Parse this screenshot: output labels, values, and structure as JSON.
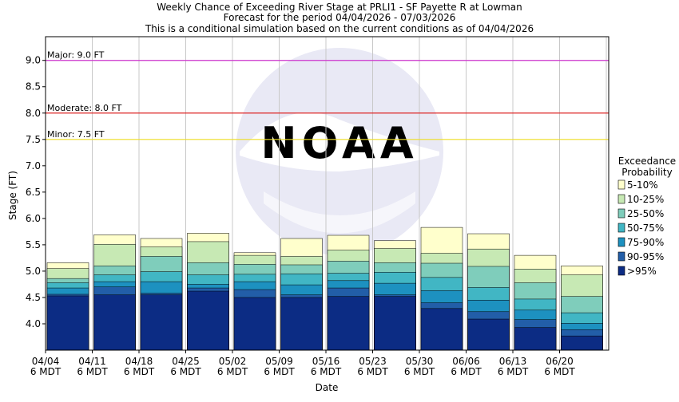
{
  "chart_data": {
    "type": "bar",
    "stacked": true,
    "title": [
      "Weekly Chance of Exceeding River Stage at PRLI1 - SF Payette R at Lowman",
      "Forecast for the period 04/04/2026 - 07/03/2026",
      "This is a conditional simulation based on the current conditions as of 04/04/2026"
    ],
    "xlabel": "Date",
    "ylabel": "Stage (FT)",
    "ylim": [
      3.5,
      9.45
    ],
    "yticks": [
      4.0,
      4.5,
      5.0,
      5.5,
      6.0,
      6.5,
      7.0,
      7.5,
      8.0,
      8.5,
      9.0
    ],
    "ytick_labels": [
      "4.0",
      "4.5",
      "5.0",
      "5.5",
      "6.0",
      "6.5",
      "7.0",
      "7.5",
      "8.0",
      "8.5",
      "9.0"
    ],
    "xtick_labels": [
      {
        "date": "04/04",
        "time": "6 MDT"
      },
      {
        "date": "04/11",
        "time": "6 MDT"
      },
      {
        "date": "04/18",
        "time": "6 MDT"
      },
      {
        "date": "04/25",
        "time": "6 MDT"
      },
      {
        "date": "05/02",
        "time": "6 MDT"
      },
      {
        "date": "05/09",
        "time": "6 MDT"
      },
      {
        "date": "05/16",
        "time": "6 MDT"
      },
      {
        "date": "05/23",
        "time": "6 MDT"
      },
      {
        "date": "05/30",
        "time": "6 MDT"
      },
      {
        "date": "06/06",
        "time": "6 MDT"
      },
      {
        "date": "06/13",
        "time": "6 MDT"
      },
      {
        "date": "06/20",
        "time": "6 MDT"
      }
    ],
    "grid": true,
    "thresholds": [
      {
        "label": "Major: 9.0 FT",
        "value": 9.0,
        "color": "#cc33cc"
      },
      {
        "label": "Moderate: 8.0 FT",
        "value": 8.0,
        "color": "#dd2222"
      },
      {
        "label": "Minor: 7.5 FT",
        "value": 7.5,
        "color": "#eedd22"
      }
    ],
    "legend": {
      "position": "right",
      "title": [
        "Exceedance",
        "Probability"
      ],
      "entries": [
        {
          "label": "5-10%",
          "color": "#ffffcc"
        },
        {
          "label": "10-25%",
          "color": "#c7e9b4"
        },
        {
          "label": "25-50%",
          "color": "#7fcdbb"
        },
        {
          "label": "50-75%",
          "color": "#41b6c4"
        },
        {
          "label": "75-90%",
          "color": "#1d91c0"
        },
        {
          "label": "90-95%",
          "color": "#225ea8"
        },
        {
          "label": ">95%",
          "color": "#0c2c84"
        }
      ]
    },
    "series_order": [
      "5-10%",
      "10-25%",
      "25-50%",
      "50-75%",
      "75-90%",
      "90-95%",
      ">95%"
    ],
    "weeks": [
      {
        "week": "04/04",
        "5-10%": 5.16,
        "10-25%": 5.05,
        "25-50%": 4.86,
        "50-75%": 4.78,
        "75-90%": 4.68,
        "90-95%": 4.56,
        ">95%": 4.53
      },
      {
        "week": "04/11",
        "5-10%": 5.69,
        "10-25%": 5.51,
        "25-50%": 5.1,
        "50-75%": 4.93,
        "75-90%": 4.8,
        "90-95%": 4.7,
        ">95%": 4.55
      },
      {
        "week": "04/18",
        "5-10%": 5.62,
        "10-25%": 5.46,
        "25-50%": 5.28,
        "50-75%": 4.99,
        "75-90%": 4.8,
        "90-95%": 4.58,
        ">95%": 4.55
      },
      {
        "week": "04/25",
        "5-10%": 5.72,
        "10-25%": 5.56,
        "25-50%": 5.16,
        "50-75%": 4.93,
        "75-90%": 4.75,
        "90-95%": 4.68,
        ">95%": 4.62
      },
      {
        "week": "05/02",
        "5-10%": 5.35,
        "10-25%": 5.3,
        "25-50%": 5.13,
        "50-75%": 4.94,
        "75-90%": 4.8,
        "90-95%": 4.65,
        ">95%": 4.5
      },
      {
        "week": "05/09",
        "5-10%": 5.62,
        "10-25%": 5.28,
        "25-50%": 5.12,
        "50-75%": 4.95,
        "75-90%": 4.74,
        "90-95%": 4.55,
        ">95%": 4.5
      },
      {
        "week": "05/16",
        "5-10%": 5.68,
        "10-25%": 5.4,
        "25-50%": 5.19,
        "50-75%": 4.96,
        "75-90%": 4.82,
        "90-95%": 4.68,
        ">95%": 4.52
      },
      {
        "week": "05/23",
        "5-10%": 5.58,
        "10-25%": 5.43,
        "25-50%": 5.16,
        "50-75%": 4.98,
        "75-90%": 4.77,
        "90-95%": 4.55,
        ">95%": 4.52
      },
      {
        "week": "05/30",
        "5-10%": 5.83,
        "10-25%": 5.34,
        "25-50%": 5.15,
        "50-75%": 4.88,
        "75-90%": 4.63,
        "90-95%": 4.4,
        ">95%": 4.29
      },
      {
        "week": "06/06",
        "5-10%": 5.71,
        "10-25%": 5.42,
        "25-50%": 5.09,
        "50-75%": 4.69,
        "75-90%": 4.45,
        "90-95%": 4.23,
        ">95%": 4.09
      },
      {
        "week": "06/13",
        "5-10%": 5.3,
        "10-25%": 5.04,
        "25-50%": 4.78,
        "50-75%": 4.47,
        "75-90%": 4.26,
        "90-95%": 4.08,
        ">95%": 3.93
      },
      {
        "week": "06/20",
        "5-10%": 5.1,
        "10-25%": 4.93,
        "25-50%": 4.52,
        "50-75%": 4.21,
        "75-90%": 4.01,
        "90-95%": 3.89,
        ">95%": 3.77
      }
    ]
  }
}
